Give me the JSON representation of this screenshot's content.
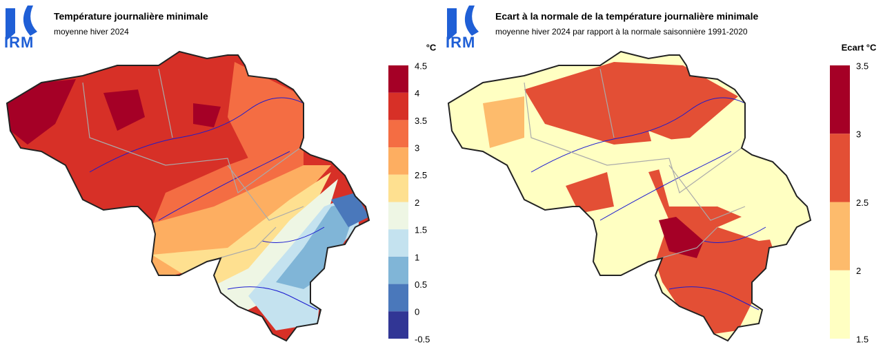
{
  "panels": [
    {
      "logo": "IRM",
      "title": "Température journalière minimale",
      "subtitle": "moyenne hiver 2024",
      "legend": {
        "unit": "°C",
        "ticks": [
          4.5,
          4,
          3.5,
          3,
          2.5,
          2,
          1.5,
          1,
          0.5,
          0,
          -0.5
        ],
        "colors": [
          "#a50026",
          "#d73027",
          "#f46d43",
          "#fdae61",
          "#fee090",
          "#eef6e4",
          "#c4e2ef",
          "#80b5d7",
          "#4a78bb",
          "#313695"
        ]
      }
    },
    {
      "logo": "IRM",
      "title": "Ecart à la normale de la température journalière minimale",
      "subtitle": "moyenne hiver 2024 par rapport à la normale saisonnière 1991-2020",
      "legend": {
        "unit": "Ecart °C",
        "ticks": [
          3.5,
          3,
          2.5,
          2,
          1.5
        ],
        "colors": [
          "#a50026",
          "#e34f35",
          "#fdbb6c",
          "#ffffc2"
        ]
      }
    }
  ]
}
